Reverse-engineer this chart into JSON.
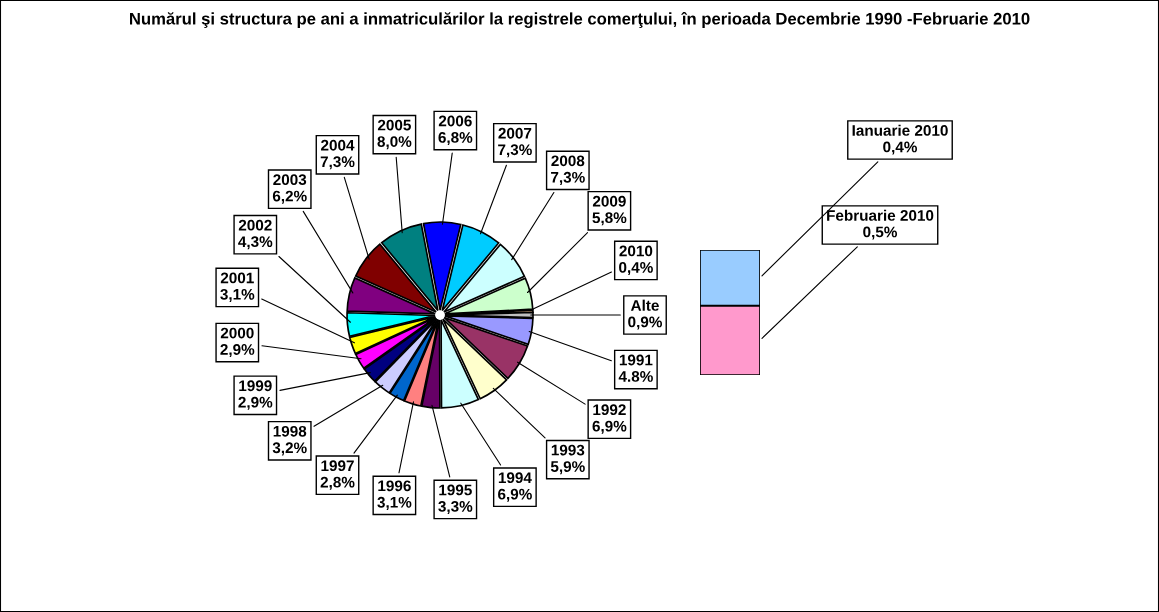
{
  "chart_data": [
    {
      "type": "pie",
      "title": "Numărul şi structura pe ani a inmatriculărilor la registrele comerţului, în perioada Decembrie 1990 -Februarie 2010",
      "categories": [
        "1991",
        "1992",
        "1993",
        "1994",
        "1995",
        "1996",
        "1997",
        "1998",
        "1999",
        "2000",
        "2001",
        "2002",
        "2003",
        "2004",
        "2005",
        "2006",
        "2007",
        "2008",
        "2009",
        "2010",
        "Alte"
      ],
      "values": [
        4.8,
        6.9,
        5.9,
        6.9,
        3.3,
        3.1,
        2.8,
        3.2,
        2.9,
        2.9,
        3.1,
        4.3,
        6.2,
        7.3,
        8.0,
        6.8,
        7.3,
        7.3,
        5.8,
        0.4,
        0.9
      ],
      "value_labels": [
        "4.8%",
        "6,9%",
        "5,9%",
        "6,9%",
        "3,3%",
        "3,1%",
        "2,8%",
        "3,2%",
        "2,9%",
        "2,9%",
        "3,1%",
        "4,3%",
        "6,2%",
        "7,3%",
        "8,0%",
        "6,8%",
        "7,3%",
        "7,3%",
        "5,8%",
        "0,4%",
        "0,9%"
      ],
      "colors": [
        "#9999ff",
        "#993366",
        "#ffffcc",
        "#ccffff",
        "#660066",
        "#ff8080",
        "#0066cc",
        "#ccccff",
        "#000080",
        "#ff00ff",
        "#ffff00",
        "#00ffff",
        "#800080",
        "#800000",
        "#008080",
        "#0000ff",
        "#00ccff",
        "#ccffff",
        "#ccffcc",
        "#ffcc99",
        "#c0c0c0"
      ]
    },
    {
      "type": "bar",
      "stacked": true,
      "categories": [
        null
      ],
      "series": [
        {
          "name": "Februarie 2010",
          "color": "#ff99cc",
          "values": [
            0.5
          ],
          "value_labels": [
            "0,5%"
          ]
        },
        {
          "name": "Ianuarie 2010",
          "color": "#99ccff",
          "values": [
            0.4
          ],
          "value_labels": [
            "0,4%"
          ]
        }
      ]
    }
  ]
}
